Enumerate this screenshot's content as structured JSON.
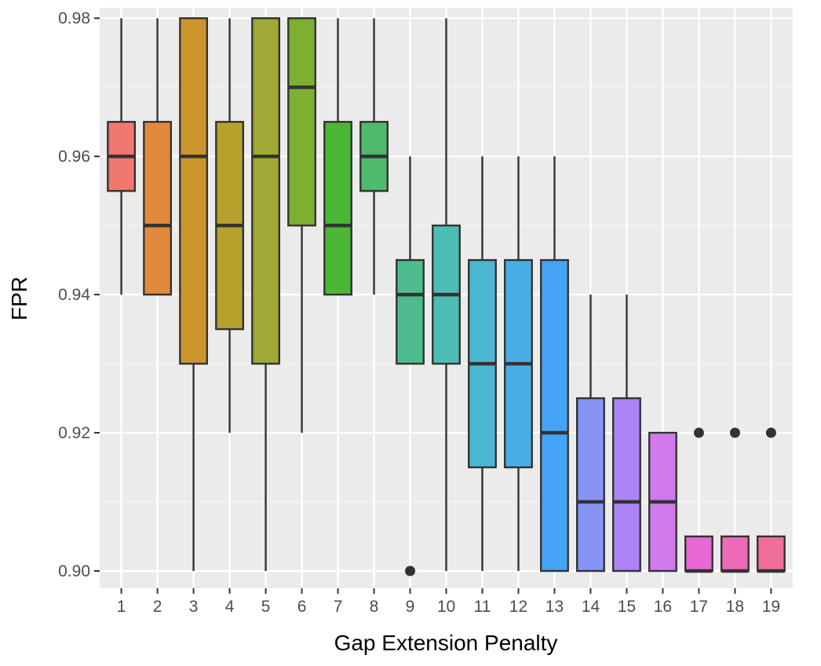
{
  "chart_data": {
    "type": "boxplot",
    "title": "",
    "xlabel": "Gap Extension Penalty",
    "ylabel": "FPR",
    "ylim": [
      0.8975,
      0.9815
    ],
    "yticks": [
      0.9,
      0.92,
      0.94,
      0.96,
      0.98
    ],
    "ytick_labels": [
      "0.90",
      "0.92",
      "0.94",
      "0.96",
      "0.98"
    ],
    "grid": true,
    "legend": "none",
    "categories": [
      "1",
      "2",
      "3",
      "4",
      "5",
      "6",
      "7",
      "8",
      "9",
      "10",
      "11",
      "12",
      "13",
      "14",
      "15",
      "16",
      "17",
      "18",
      "19"
    ],
    "boxes": [
      {
        "x": "1",
        "whisker_low": 0.94,
        "q1": 0.955,
        "median": 0.96,
        "q3": 0.965,
        "whisker_high": 0.98,
        "outliers": [],
        "color": "#F0786E"
      },
      {
        "x": "2",
        "whisker_low": 0.94,
        "q1": 0.94,
        "median": 0.95,
        "q3": 0.965,
        "whisker_high": 0.98,
        "outliers": [],
        "color": "#E2893D"
      },
      {
        "x": "3",
        "whisker_low": 0.9,
        "q1": 0.93,
        "median": 0.96,
        "q3": 0.98,
        "whisker_high": 0.98,
        "outliers": [],
        "color": "#CC952B"
      },
      {
        "x": "4",
        "whisker_low": 0.92,
        "q1": 0.935,
        "median": 0.95,
        "q3": 0.965,
        "whisker_high": 0.98,
        "outliers": [],
        "color": "#B7A12D"
      },
      {
        "x": "5",
        "whisker_low": 0.9,
        "q1": 0.93,
        "median": 0.96,
        "q3": 0.98,
        "whisker_high": 0.98,
        "outliers": [],
        "color": "#9FA935"
      },
      {
        "x": "6",
        "whisker_low": 0.92,
        "q1": 0.95,
        "median": 0.97,
        "q3": 0.98,
        "whisker_high": 0.98,
        "outliers": [],
        "color": "#7DB032"
      },
      {
        "x": "7",
        "whisker_low": 0.94,
        "q1": 0.94,
        "median": 0.95,
        "q3": 0.965,
        "whisker_high": 0.98,
        "outliers": [],
        "color": "#4CB635"
      },
      {
        "x": "8",
        "whisker_low": 0.94,
        "q1": 0.955,
        "median": 0.96,
        "q3": 0.965,
        "whisker_high": 0.98,
        "outliers": [],
        "color": "#4FBA6C"
      },
      {
        "x": "9",
        "whisker_low": 0.93,
        "q1": 0.93,
        "median": 0.94,
        "q3": 0.945,
        "whisker_high": 0.96,
        "outliers": [
          0.9
        ],
        "color": "#4EBC8E"
      },
      {
        "x": "10",
        "whisker_low": 0.9,
        "q1": 0.93,
        "median": 0.94,
        "q3": 0.95,
        "whisker_high": 0.98,
        "outliers": [],
        "color": "#4DBDB4"
      },
      {
        "x": "11",
        "whisker_low": 0.9,
        "q1": 0.915,
        "median": 0.93,
        "q3": 0.945,
        "whisker_high": 0.96,
        "outliers": [],
        "color": "#4BB7D1"
      },
      {
        "x": "12",
        "whisker_low": 0.9,
        "q1": 0.915,
        "median": 0.93,
        "q3": 0.945,
        "whisker_high": 0.96,
        "outliers": [],
        "color": "#49AEE5"
      },
      {
        "x": "13",
        "whisker_low": 0.9,
        "q1": 0.9,
        "median": 0.92,
        "q3": 0.945,
        "whisker_high": 0.96,
        "outliers": [],
        "color": "#45A3F5"
      },
      {
        "x": "14",
        "whisker_low": 0.9,
        "q1": 0.9,
        "median": 0.91,
        "q3": 0.925,
        "whisker_high": 0.94,
        "outliers": [],
        "color": "#8894F5"
      },
      {
        "x": "15",
        "whisker_low": 0.9,
        "q1": 0.9,
        "median": 0.91,
        "q3": 0.925,
        "whisker_high": 0.94,
        "outliers": [],
        "color": "#AC84F5"
      },
      {
        "x": "16",
        "whisker_low": 0.9,
        "q1": 0.9,
        "median": 0.91,
        "q3": 0.92,
        "whisker_high": 0.92,
        "outliers": [],
        "color": "#D07AEE"
      },
      {
        "x": "17",
        "whisker_low": 0.9,
        "q1": 0.9,
        "median": 0.9,
        "q3": 0.905,
        "whisker_high": 0.905,
        "outliers": [
          0.92
        ],
        "color": "#E868D6"
      },
      {
        "x": "18",
        "whisker_low": 0.9,
        "q1": 0.9,
        "median": 0.9,
        "q3": 0.905,
        "whisker_high": 0.905,
        "outliers": [
          0.92
        ],
        "color": "#EE6AB9"
      },
      {
        "x": "19",
        "whisker_low": 0.9,
        "q1": 0.9,
        "median": 0.9,
        "q3": 0.905,
        "whisker_high": 0.905,
        "outliers": [
          0.92
        ],
        "color": "#EF6F98"
      }
    ],
    "colors": {
      "panel_background": "#EBEBEB",
      "grid_major": "#FFFFFF",
      "grid_minor": "#F5F5F5",
      "box_outline": "#333333"
    }
  }
}
